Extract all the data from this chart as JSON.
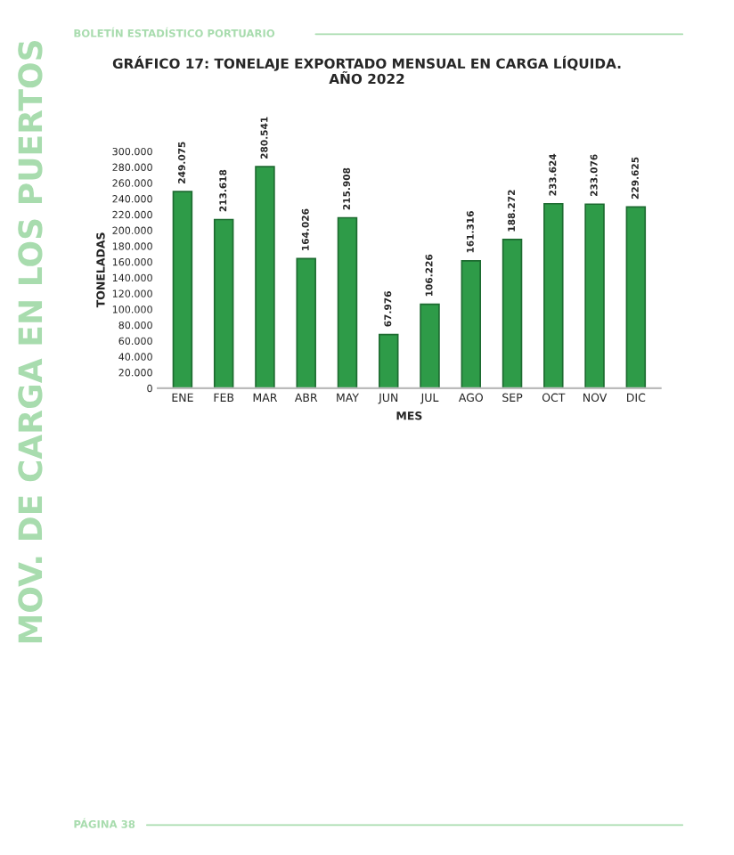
{
  "chart_data": {
    "type": "bar",
    "title": "GRÁFICO 17: TONELAJE EXPORTADO MENSUAL EN CARGA LÍQUIDA.",
    "subtitle": "AÑO 2022",
    "xlabel": "MES",
    "ylabel": "TONELADAS",
    "categories": [
      "ENE",
      "FEB",
      "MAR",
      "ABR",
      "MAY",
      "JUN",
      "JUL",
      "AGO",
      "SEP",
      "OCT",
      "NOV",
      "DIC"
    ],
    "values": [
      249075,
      213618,
      280541,
      164026,
      215908,
      67976,
      106226,
      161316,
      188272,
      233624,
      233076,
      229625
    ],
    "value_labels": [
      "249.075",
      "213.618",
      "280.541",
      "164.026",
      "215.908",
      "67.976",
      "106.226",
      "161.316",
      "188.272",
      "233.624",
      "233.076",
      "229.625"
    ],
    "color": "#2e9b48",
    "ylim": [
      0,
      300000
    ],
    "yticks": [
      {
        "value": 0,
        "label": "0"
      },
      {
        "value": 20000,
        "label": "20.000"
      },
      {
        "value": 40000,
        "label": "40.000"
      },
      {
        "value": 60000,
        "label": "60.000"
      },
      {
        "value": 80000,
        "label": "80.000"
      },
      {
        "value": 100000,
        "label": "100.000"
      },
      {
        "value": 120000,
        "label": "120.000"
      },
      {
        "value": 140000,
        "label": "140.000"
      },
      {
        "value": 160000,
        "label": "160.000"
      },
      {
        "value": 180000,
        "label": "180.000"
      },
      {
        "value": 200000,
        "label": "200.000"
      },
      {
        "value": 220000,
        "label": "220.000"
      },
      {
        "value": 240000,
        "label": "240.000"
      },
      {
        "value": 260000,
        "label": "260.000"
      },
      {
        "value": 280000,
        "label": "280.000"
      },
      {
        "value": 300000,
        "label": "300.000"
      }
    ],
    "grid": false,
    "annotations": [
      "BOLETÍN ESTADÍSTICO PORTUARIO",
      "MOV. DE CARGA EN LOS PUERTOS",
      "PÁGINA 38"
    ]
  }
}
